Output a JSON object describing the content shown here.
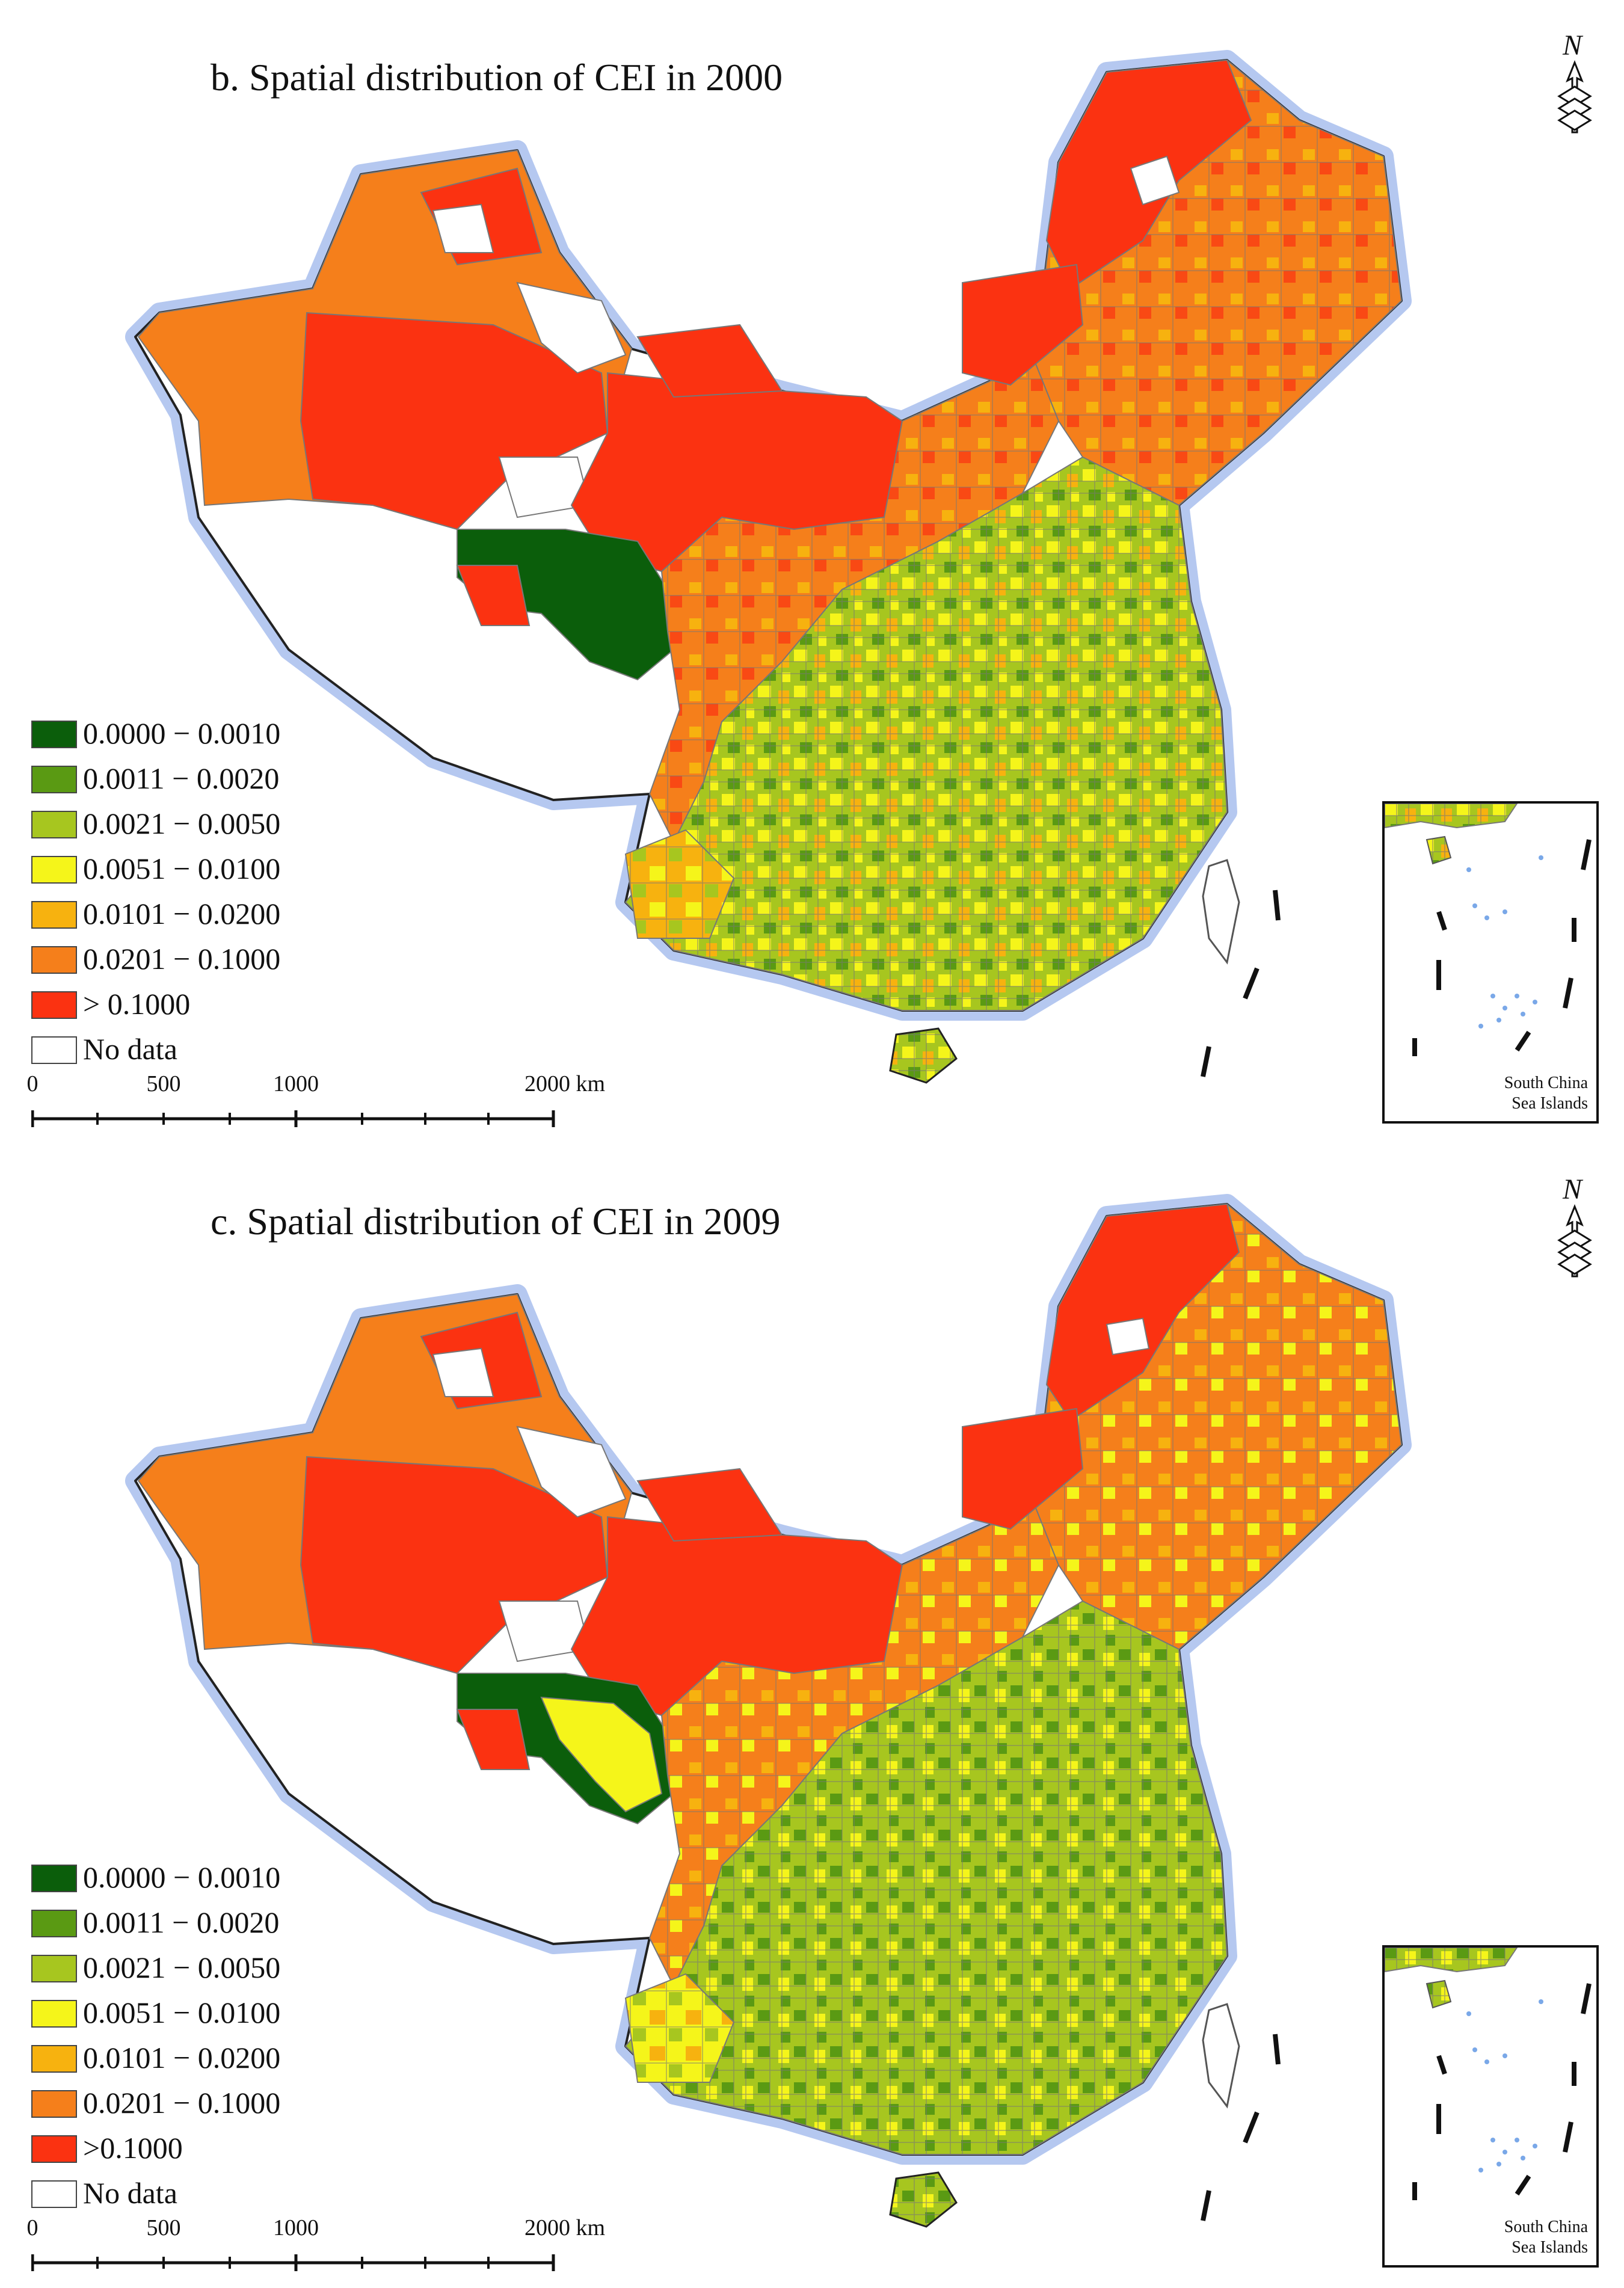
{
  "figure": {
    "legend_colors": {
      "0.0000 – 0.0010": "#0b5e0b",
      "0.0011 – 0.0020": "#5a9a13",
      "0.0021 – 0.0050": "#a7c61f",
      "0.0051 – 0.0100": "#f5f51a",
      "0.0101 – 0.0200": "#f7b20f",
      "0.0201 – 0.1000": "#f57f1b",
      "> 0.1000": "#fb3211",
      "No data": "#ffffff"
    },
    "scalebar": {
      "ticks": [
        "0",
        "500",
        "1000",
        "2000 km"
      ]
    },
    "north_arrow": {
      "label": "N",
      "icon": "north-arrow-icon"
    },
    "inset": {
      "label_line1": "South China",
      "label_line2": "Sea Islands"
    }
  },
  "panels": [
    {
      "title": "b. Spatial distribution of CEI in 2000",
      "legend": [
        {
          "label": "0.0000 − 0.0010",
          "color": "#0b5e0b"
        },
        {
          "label": "0.0011 − 0.0020",
          "color": "#5a9a13"
        },
        {
          "label": "0.0021 − 0.0050",
          "color": "#a7c61f"
        },
        {
          "label": "0.0051 − 0.0100",
          "color": "#f5f51a"
        },
        {
          "label": "0.0101 − 0.0200",
          "color": "#f7b20f"
        },
        {
          "label": "0.0201 − 0.1000",
          "color": "#f57f1b"
        },
        {
          "label": "> 0.1000",
          "color": "#fb3211"
        },
        {
          "label": "No data",
          "color": "#ffffff"
        }
      ]
    },
    {
      "title": "c. Spatial distribution of CEI in 2009",
      "legend": [
        {
          "label": "0.0000 − 0.0010",
          "color": "#0b5e0b"
        },
        {
          "label": "0.0011 − 0.0020",
          "color": "#5a9a13"
        },
        {
          "label": "0.0021 − 0.0050",
          "color": "#a7c61f"
        },
        {
          "label": "0.0051 − 0.0100",
          "color": "#f5f51a"
        },
        {
          "label": "0.0101 − 0.0200",
          "color": "#f7b20f"
        },
        {
          "label": "0.0201 − 0.1000",
          "color": "#f57f1b"
        },
        {
          "label": ">0.1000",
          "color": "#fb3211"
        },
        {
          "label": "No data",
          "color": "#ffffff"
        }
      ]
    }
  ]
}
